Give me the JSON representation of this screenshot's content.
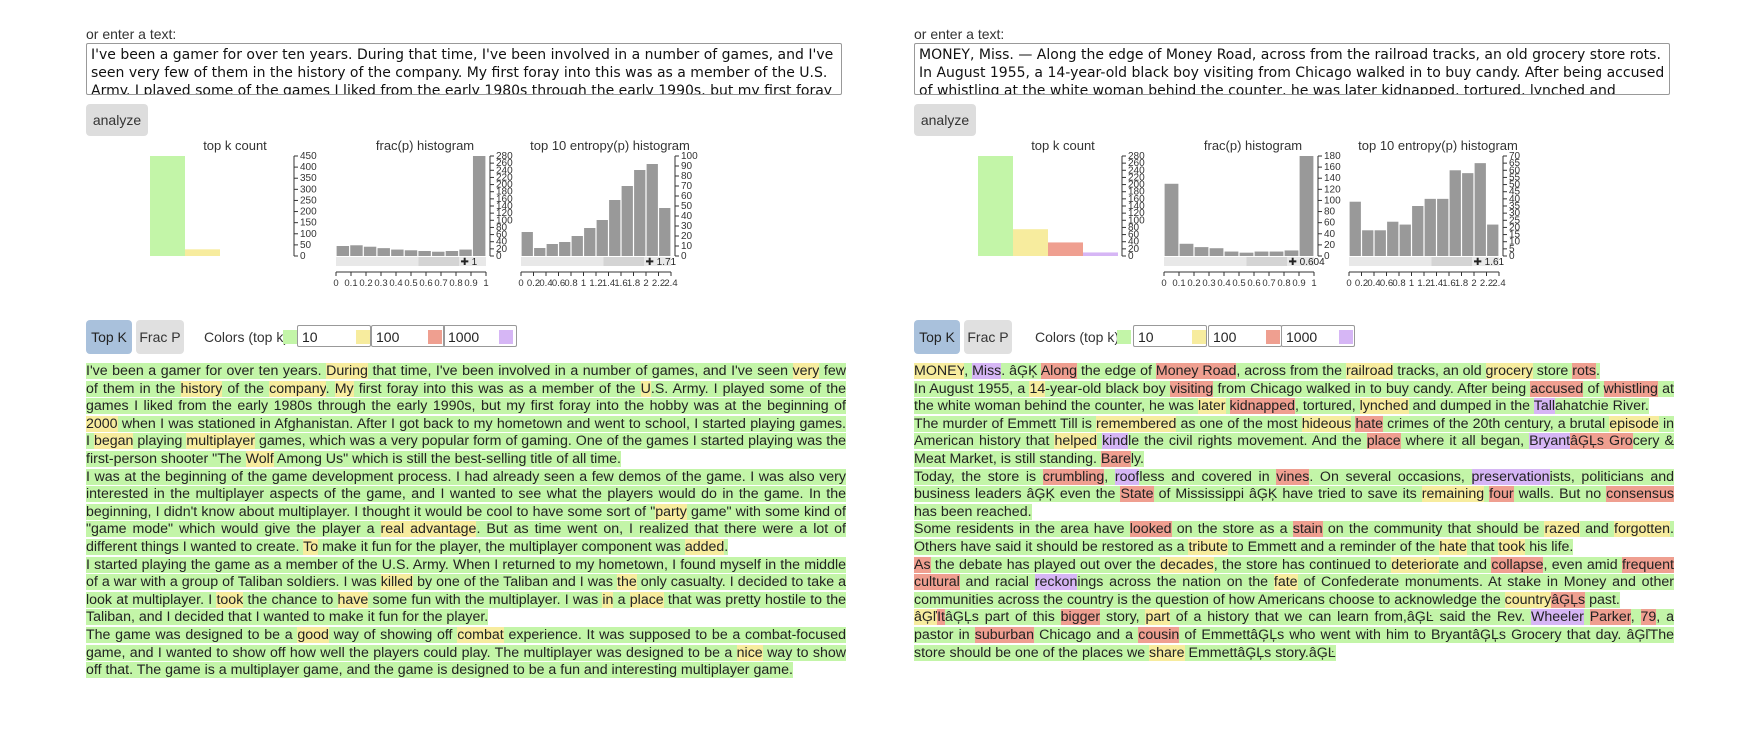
{
  "colors": {
    "top10": "#c3f5a8",
    "top100": "#f7ec9e",
    "top1000": "#ef9f90",
    "rest": "#d6b6f5",
    "bar": "#999999",
    "tab_active": "#a9c1dc"
  },
  "left": {
    "enter_label": "or enter a text:",
    "text_value": "I've been a gamer for over ten years. During that time, I've been involved in a number of games, and I've seen very few of them in the history of the company. My first foray into this was as a member of the U.S. Army. I played some of the games I liked from the early 1980s through the early 1990s, but my first foray into the hobby was at the beginning of 2000 when I was",
    "analyze_label": "analyze",
    "charts": {
      "topk_title": "top k count",
      "frac_title": "frac(p) histogram",
      "entropy_title": "top 10 entropy(p) histogram",
      "frac_marker": "1",
      "entropy_marker": "1.71"
    },
    "tabs": {
      "topk": "Top K",
      "fracp": "Frac P"
    },
    "colors_label": "Colors (top k):",
    "color_inputs": [
      "10",
      "100",
      "1000"
    ]
  },
  "right": {
    "enter_label": "or enter a text:",
    "text_value": "MONEY, Miss. — Along the edge of Money Road, across from the railroad tracks, an old grocery store rots.\nIn August 1955, a 14-year-old black boy visiting from Chicago walked in to buy candy. After being accused of whistling at the white woman behind the counter, he was later kidnapped, tortured, lynched and dumped in the Tallahatchie River.",
    "analyze_label": "analyze",
    "charts": {
      "topk_title": "top k count",
      "frac_title": "frac(p) histogram",
      "entropy_title": "top 10 entropy(p) histogram",
      "frac_marker": "0.604",
      "entropy_marker": "1.61"
    },
    "tabs": {
      "topk": "Top K",
      "fracp": "Frac P"
    },
    "colors_label": "Colors (top k):",
    "color_inputs": [
      "10",
      "100",
      "1000"
    ]
  },
  "chart_data": [
    {
      "panel": "left",
      "type": "bar",
      "title": "top k count",
      "categories": [
        "top10",
        "top100",
        "top1000",
        "rest"
      ],
      "values": [
        450,
        30,
        0,
        0
      ],
      "yticks": [
        0,
        50,
        100,
        150,
        200,
        250,
        300,
        350,
        400,
        450
      ],
      "ylim": [
        0,
        450
      ]
    },
    {
      "panel": "left",
      "type": "bar",
      "title": "frac(p) histogram",
      "x": [
        0,
        0.1,
        0.2,
        0.3,
        0.4,
        0.5,
        0.6,
        0.7,
        0.8,
        0.9,
        1
      ],
      "values": [
        28,
        30,
        26,
        22,
        18,
        16,
        14,
        12,
        14,
        18,
        280
      ],
      "ylim": [
        0,
        280
      ],
      "yticks": [
        0,
        20,
        40,
        60,
        80,
        100,
        120,
        140,
        160,
        180,
        200,
        220,
        240,
        260,
        280
      ],
      "xtick_labels": [
        "0",
        "0.1",
        "0.2",
        "0.3",
        "0.4",
        "0.5",
        "0.6",
        "0.7",
        "0.8",
        "0.9",
        "1"
      ]
    },
    {
      "panel": "left",
      "type": "bar",
      "title": "top 10 entropy(p) histogram",
      "values": [
        24,
        8,
        12,
        14,
        20,
        28,
        36,
        56,
        70,
        86,
        92,
        48
      ],
      "ylim": [
        0,
        100
      ],
      "yticks": [
        0,
        10,
        20,
        30,
        40,
        50,
        60,
        70,
        80,
        90,
        100
      ],
      "xtick_labels": [
        "0",
        "0.2",
        "0.4",
        "0.6",
        "0.8",
        "1",
        "1.2",
        "1.4",
        "1.6",
        "1.8",
        "2",
        "2.2",
        "2.4"
      ]
    },
    {
      "panel": "right",
      "type": "bar",
      "title": "top k count",
      "categories": [
        "top10",
        "top100",
        "top1000",
        "rest"
      ],
      "values": [
        280,
        75,
        38,
        10
      ],
      "yticks": [
        0,
        20,
        40,
        60,
        80,
        100,
        120,
        140,
        160,
        180,
        200,
        220,
        240,
        260,
        280
      ],
      "ylim": [
        0,
        280
      ]
    },
    {
      "panel": "right",
      "type": "bar",
      "title": "frac(p) histogram",
      "values": [
        130,
        22,
        16,
        14,
        8,
        6,
        8,
        8,
        10,
        180
      ],
      "ylim": [
        0,
        180
      ],
      "yticks": [
        0,
        20,
        40,
        60,
        80,
        100,
        120,
        140,
        160,
        180
      ],
      "xtick_labels": [
        "0",
        "0.1",
        "0.2",
        "0.3",
        "0.4",
        "0.5",
        "0.6",
        "0.7",
        "0.8",
        "0.9",
        "1"
      ]
    },
    {
      "panel": "right",
      "type": "bar",
      "title": "top 10 entropy(p) histogram",
      "values": [
        38,
        18,
        18,
        24,
        22,
        35,
        40,
        40,
        60,
        58,
        65,
        22
      ],
      "ylim": [
        0,
        70
      ],
      "yticks": [
        0,
        5,
        10,
        15,
        20,
        25,
        30,
        35,
        40,
        45,
        50,
        55,
        60,
        65,
        70
      ],
      "xtick_labels": [
        "0",
        "0.2",
        "0.4",
        "0.6",
        "0.8",
        "1",
        "1.2",
        "1.4",
        "1.6",
        "1.8",
        "2",
        "2.2",
        "2.4"
      ]
    }
  ],
  "left_tokens": [
    [
      [
        "I've been a gamer for over ten years. ",
        "g"
      ],
      [
        "During",
        "y"
      ],
      [
        " that time, I've been involved in a number of games, and I've seen ",
        "g"
      ],
      [
        "very",
        "y"
      ],
      [
        " few of them in the ",
        "g"
      ],
      [
        "history",
        "y"
      ],
      [
        " of the ",
        "g"
      ],
      [
        "company",
        "y"
      ],
      [
        ". ",
        "g"
      ],
      [
        "My",
        "y"
      ],
      [
        " first foray into this was as a member of the ",
        "g"
      ],
      [
        "U",
        "y"
      ],
      [
        ".S. Army. I played some of the games I liked from the early 1980s through the early 1990s, but my first foray into the hobby was at the beginning of ",
        "g"
      ],
      [
        "2000",
        "y"
      ],
      [
        " when I was stationed in Afghanistan. After I got back to my hometown and went to school, I started playing games. I ",
        "g"
      ],
      [
        "began",
        "y"
      ],
      [
        " playing ",
        "g"
      ],
      [
        "multiplayer",
        "y"
      ],
      [
        " games, which was a very popular form of gaming. One of the games I started playing was the first-person shooter \"The ",
        "g"
      ],
      [
        "Wolf",
        "y"
      ],
      [
        " Among Us\" which is still the best-selling title of all time.",
        "g"
      ]
    ],
    [
      [
        "I was at the beginning of the game development process. I had already seen a few demos of the game. I was also very interested in the multiplayer aspects of the game, and I wanted to see what the players would do in the game. In the beginning, I didn't know about multiplayer. I thought it would be cool to have some sort of \"",
        "g"
      ],
      [
        "party",
        "y"
      ],
      [
        " game\" with some kind of \"game mode\" which would give the player a ",
        "g"
      ],
      [
        "real advantage",
        "y"
      ],
      [
        ". But as time went on, I realized that there were a lot of different things I wanted to create. ",
        "g"
      ],
      [
        "To",
        "y"
      ],
      [
        " make it fun for the player, the multiplayer component was ",
        "g"
      ],
      [
        "added",
        "y"
      ],
      [
        ".",
        "g"
      ]
    ],
    [
      [
        "I started playing the game as a member of the U.S. Army. When I returned to my hometown, I found myself in the middle of a war with a group of Taliban soldiers. I was ",
        "g"
      ],
      [
        "killed",
        "y"
      ],
      [
        " by one of the Taliban and I was ",
        "g"
      ],
      [
        "the",
        "y"
      ],
      [
        " only casualty. I decided to take a look at multiplayer. I ",
        "g"
      ],
      [
        "took",
        "y"
      ],
      [
        " the chance to ",
        "g"
      ],
      [
        "have",
        "y"
      ],
      [
        " some fun with the multiplayer. I was ",
        "g"
      ],
      [
        "in",
        "y"
      ],
      [
        " a ",
        "g"
      ],
      [
        "place",
        "y"
      ],
      [
        " that was pretty hostile to the Taliban, and I decided that I wanted to make it fun for the player.",
        "g"
      ]
    ],
    [
      [
        "The game was designed to be a ",
        "g"
      ],
      [
        "good",
        "y"
      ],
      [
        " way of showing off ",
        "g"
      ],
      [
        "combat",
        "y"
      ],
      [
        " experience. It was supposed to be a combat-focused game, and I wanted to show off how well the players could play. The multiplayer was designed to be a ",
        "g"
      ],
      [
        "nice",
        "y"
      ],
      [
        " way to show off that. The game is a multiplayer game, and the game is designed to be a fun and interesting multiplayer game.",
        "g"
      ]
    ]
  ],
  "right_tokens": [
    [
      [
        "MONEY",
        "y"
      ],
      [
        ", ",
        "g"
      ],
      [
        "Miss",
        "p"
      ],
      [
        ". âĢĶ ",
        "g"
      ],
      [
        "Along",
        "r"
      ],
      [
        " the edge of ",
        "g"
      ],
      [
        "Money Road",
        "r"
      ],
      [
        ", across from the ",
        "g"
      ],
      [
        "railroad",
        "y"
      ],
      [
        " tracks, an old ",
        "g"
      ],
      [
        "grocery",
        "y"
      ],
      [
        " store ",
        "g"
      ],
      [
        "rots",
        "r"
      ],
      [
        ".",
        "g"
      ]
    ],
    [
      [
        "In August 1955, a ",
        "g"
      ],
      [
        "14",
        "y"
      ],
      [
        "-year-old black boy ",
        "g"
      ],
      [
        "visiting",
        "r"
      ],
      [
        " from Chicago walked in to buy candy. After being ",
        "g"
      ],
      [
        "accused",
        "r"
      ],
      [
        " of ",
        "g"
      ],
      [
        "whistling",
        "r"
      ],
      [
        " at the white woman behind the counter, he was ",
        "g"
      ],
      [
        "later",
        "y"
      ],
      [
        " ",
        "g"
      ],
      [
        "kidnapped",
        "r"
      ],
      [
        ", tortured, ",
        "g"
      ],
      [
        "lynched",
        "y"
      ],
      [
        " and dumped in the ",
        "g"
      ],
      [
        "Tall",
        "p"
      ],
      [
        "ahatchie River.",
        "g"
      ]
    ],
    [
      [
        "The murder of Emmett Till is ",
        "g"
      ],
      [
        "remembered",
        "y"
      ],
      [
        " as one of the most ",
        "g"
      ],
      [
        "hideous",
        "y"
      ],
      [
        " ",
        "g"
      ],
      [
        "hate",
        "r"
      ],
      [
        " crimes of the 20th century, a brutal ",
        "g"
      ],
      [
        "episode",
        "y"
      ],
      [
        " in American history that ",
        "g"
      ],
      [
        "helped",
        "y"
      ],
      [
        " ",
        "g"
      ],
      [
        "kind",
        "p"
      ],
      [
        "le the civil rights movement. And the ",
        "g"
      ],
      [
        "place",
        "r"
      ],
      [
        " where it all began, ",
        "g"
      ],
      [
        "Bryant",
        "p"
      ],
      [
        "âĢĻs ",
        "r"
      ],
      [
        "Gro",
        "r"
      ],
      [
        "cery & Meat Market, is still standing. ",
        "g"
      ],
      [
        "Bare",
        "r"
      ],
      [
        "ly.",
        "g"
      ]
    ],
    [
      [
        "Today, the store is ",
        "g"
      ],
      [
        "crumbling",
        "r"
      ],
      [
        ", ",
        "g"
      ],
      [
        "roof",
        "p"
      ],
      [
        "less and covered in ",
        "g"
      ],
      [
        "vines",
        "r"
      ],
      [
        ". On several occasions, ",
        "g"
      ],
      [
        "preservation",
        "p"
      ],
      [
        "ists, politicians and business leaders âĢĶ even the ",
        "g"
      ],
      [
        "State",
        "r"
      ],
      [
        " of Mississippi âĢĶ have tried to save its ",
        "g"
      ],
      [
        "remaining",
        "y"
      ],
      [
        " ",
        "g"
      ],
      [
        "four",
        "r"
      ],
      [
        " walls. But no ",
        "g"
      ],
      [
        "consensus",
        "r"
      ],
      [
        " has been reached.",
        "g"
      ]
    ],
    [
      [
        "Some residents in the area have ",
        "g"
      ],
      [
        "looked",
        "r"
      ],
      [
        " on the store as a ",
        "g"
      ],
      [
        "stain",
        "r"
      ],
      [
        " on the community that should be ",
        "g"
      ],
      [
        "razed",
        "y"
      ],
      [
        " and ",
        "g"
      ],
      [
        "forgotten",
        "y"
      ],
      [
        ". Others have said it should be restored as a ",
        "g"
      ],
      [
        "tribute",
        "y"
      ],
      [
        " to Emmett and a reminder of the ",
        "g"
      ],
      [
        "hate",
        "y"
      ],
      [
        " that ",
        "g"
      ],
      [
        "took",
        "y"
      ],
      [
        " his life.",
        "g"
      ]
    ],
    [
      [
        "As",
        "r"
      ],
      [
        " the debate has played out over the ",
        "g"
      ],
      [
        "decades",
        "y"
      ],
      [
        ", the store has continued to ",
        "g"
      ],
      [
        "deterior",
        "y"
      ],
      [
        "ate and ",
        "g"
      ],
      [
        "collapse",
        "r"
      ],
      [
        ", even amid ",
        "g"
      ],
      [
        "frequent cultural",
        "r"
      ],
      [
        " and racial ",
        "g"
      ],
      [
        "reckon",
        "p"
      ],
      [
        "ings across the nation on the ",
        "g"
      ],
      [
        "fate",
        "y"
      ],
      [
        " of Confederate monuments. At stake in Money and other communities across the country is the question of how Americans choose to acknowledge the ",
        "g"
      ],
      [
        "country",
        "y"
      ],
      [
        "âĢĻs",
        "r"
      ],
      [
        " past.",
        "g"
      ]
    ],
    [
      [
        "âĢľ",
        "y"
      ],
      [
        "It",
        "r"
      ],
      [
        "âĢĻs part of this ",
        "g"
      ],
      [
        "bigger",
        "r"
      ],
      [
        " story, ",
        "g"
      ],
      [
        "part",
        "y"
      ],
      [
        " of a history that we can learn from,âĢĿ said the Rev. ",
        "g"
      ],
      [
        "Wheeler",
        "p"
      ],
      [
        " ",
        "g"
      ],
      [
        "Parker",
        "r"
      ],
      [
        ", ",
        "g"
      ],
      [
        "79",
        "r"
      ],
      [
        ", a pastor in ",
        "g"
      ],
      [
        "suburban",
        "r"
      ],
      [
        " Chicago and a ",
        "g"
      ],
      [
        "cousin",
        "r"
      ],
      [
        " of EmmettâĢĻs who went with him to BryantâĢĻs Grocery that day. âĢľThe store should be one of the places we ",
        "g"
      ],
      [
        "share",
        "y"
      ],
      [
        " EmmettâĢĻs story.âĢĿ",
        "g"
      ]
    ]
  ]
}
